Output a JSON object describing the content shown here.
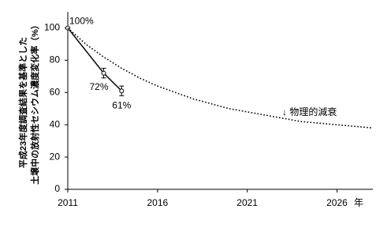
{
  "chart_data": {
    "type": "line",
    "ylabel_lines": [
      "平成23年度調査結果を基準とした",
      "土壌中の放射性セシウム濃度変化率（%）"
    ],
    "xlabel": "年",
    "xlim": [
      2011,
      2028
    ],
    "xticks": [
      2011,
      2016,
      2021,
      2026
    ],
    "ylim": [
      0,
      110
    ],
    "yticks": [
      0,
      20,
      40,
      60,
      80,
      100
    ],
    "grid": false,
    "series": [
      {
        "color": "#000000",
        "style": "solid",
        "markers": true,
        "x": [
          2011,
          2013,
          2014
        ],
        "values": [
          100,
          72,
          61
        ],
        "errors": [
          0,
          3,
          3
        ],
        "value_labels": [
          "100%",
          "72%",
          "61%"
        ]
      },
      {
        "name": "↓ 物理的減衰",
        "color": "#000000",
        "style": "dotted",
        "markers": false,
        "x": [
          2011,
          2012,
          2013,
          2014,
          2015,
          2016,
          2018,
          2020,
          2022,
          2024,
          2026,
          2028
        ],
        "values": [
          100,
          90,
          82,
          75,
          69,
          64,
          56,
          50,
          46,
          42,
          40,
          38
        ]
      }
    ]
  }
}
